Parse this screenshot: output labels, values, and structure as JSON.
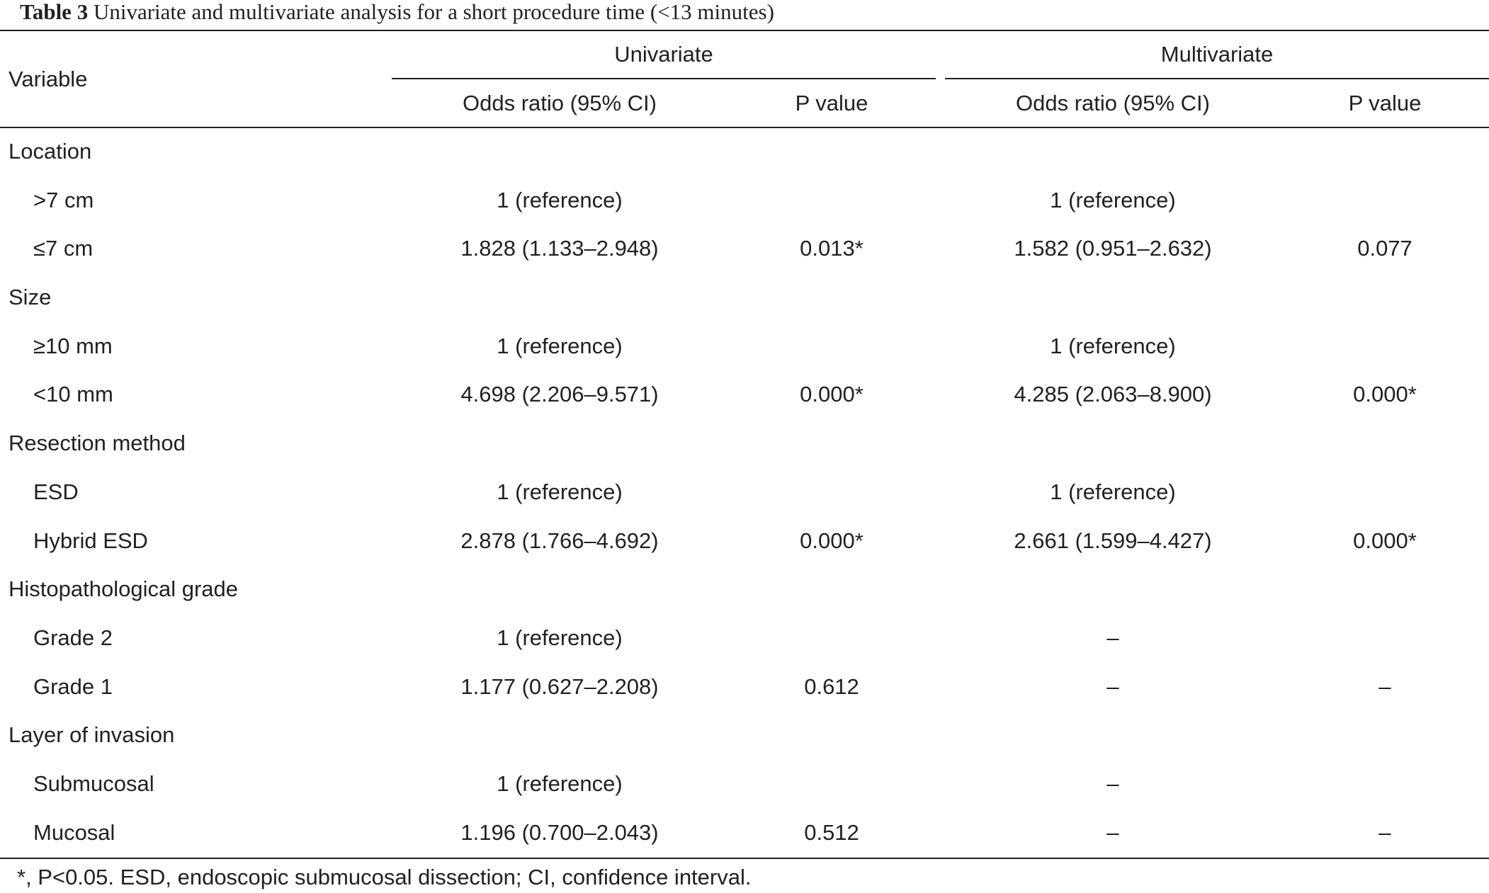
{
  "caption": {
    "label": "Table 3",
    "text": " Univariate and multivariate analysis for a short procedure time (<13 minutes)"
  },
  "header": {
    "variable": "Variable",
    "univariate": "Univariate",
    "multivariate": "Multivariate",
    "uni_or": "Odds ratio (95% CI)",
    "uni_p": "P value",
    "multi_or": "Odds ratio (95% CI)",
    "multi_p": "P value"
  },
  "rows": [
    {
      "variable": "Location",
      "indent": false,
      "uni_or": "",
      "uni_p": "",
      "multi_or": "",
      "multi_p": ""
    },
    {
      "variable": ">7 cm",
      "indent": true,
      "uni_or": "1 (reference)",
      "uni_p": "",
      "multi_or": "1 (reference)",
      "multi_p": ""
    },
    {
      "variable": "≤7 cm",
      "indent": true,
      "uni_or": "1.828 (1.133–2.948)",
      "uni_p": "0.013*",
      "multi_or": "1.582 (0.951–2.632)",
      "multi_p": "0.077"
    },
    {
      "variable": "Size",
      "indent": false,
      "uni_or": "",
      "uni_p": "",
      "multi_or": "",
      "multi_p": ""
    },
    {
      "variable": "≥10 mm",
      "indent": true,
      "uni_or": "1 (reference)",
      "uni_p": "",
      "multi_or": "1 (reference)",
      "multi_p": ""
    },
    {
      "variable": "<10 mm",
      "indent": true,
      "uni_or": "4.698 (2.206–9.571)",
      "uni_p": "0.000*",
      "multi_or": "4.285 (2.063–8.900)",
      "multi_p": "0.000*"
    },
    {
      "variable": "Resection method",
      "indent": false,
      "uni_or": "",
      "uni_p": "",
      "multi_or": "",
      "multi_p": ""
    },
    {
      "variable": "ESD",
      "indent": true,
      "uni_or": "1 (reference)",
      "uni_p": "",
      "multi_or": "1 (reference)",
      "multi_p": ""
    },
    {
      "variable": "Hybrid ESD",
      "indent": true,
      "uni_or": "2.878 (1.766–4.692)",
      "uni_p": "0.000*",
      "multi_or": "2.661 (1.599–4.427)",
      "multi_p": "0.000*"
    },
    {
      "variable": "Histopathological grade",
      "indent": false,
      "uni_or": "",
      "uni_p": "",
      "multi_or": "",
      "multi_p": ""
    },
    {
      "variable": "Grade 2",
      "indent": true,
      "uni_or": "1 (reference)",
      "uni_p": "",
      "multi_or": "–",
      "multi_p": ""
    },
    {
      "variable": "Grade 1",
      "indent": true,
      "uni_or": "1.177 (0.627–2.208)",
      "uni_p": "0.612",
      "multi_or": "–",
      "multi_p": "–"
    },
    {
      "variable": "Layer of invasion",
      "indent": false,
      "uni_or": "",
      "uni_p": "",
      "multi_or": "",
      "multi_p": ""
    },
    {
      "variable": "Submucosal",
      "indent": true,
      "uni_or": "1 (reference)",
      "uni_p": "",
      "multi_or": "–",
      "multi_p": ""
    },
    {
      "variable": "Mucosal",
      "indent": true,
      "uni_or": "1.196 (0.700–2.043)",
      "uni_p": "0.512",
      "multi_or": "–",
      "multi_p": "–"
    }
  ],
  "footnote": "*, P<0.05. ESD, endoscopic submucosal dissection; CI, confidence interval."
}
